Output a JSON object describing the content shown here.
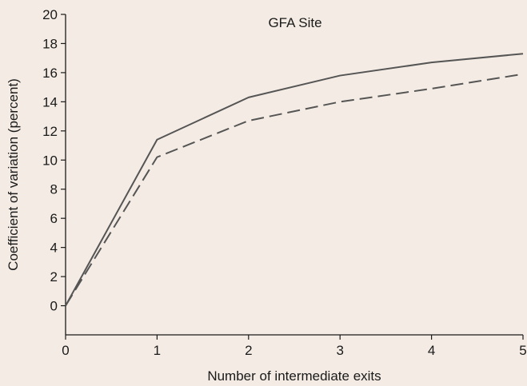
{
  "chart_data": {
    "type": "line",
    "title": "GFA Site",
    "xlabel": "Number of intermediate exits",
    "ylabel": "Coefficient of variation (percent)",
    "xlim": [
      0,
      5
    ],
    "ylim": [
      -2,
      20
    ],
    "x_ticks": [
      "0",
      "1",
      "2",
      "3",
      "4",
      "5"
    ],
    "y_ticks": [
      "0",
      "2",
      "4",
      "6",
      "8",
      "10",
      "12",
      "14",
      "16",
      "18",
      "20"
    ],
    "grid": false,
    "series": [
      {
        "style": "solid",
        "color": "#555555",
        "x": [
          0,
          1,
          2,
          3,
          4,
          5
        ],
        "values": [
          0,
          11.4,
          14.3,
          15.8,
          16.7,
          17.3
        ]
      },
      {
        "style": "dashed",
        "color": "#555555",
        "x": [
          0,
          1,
          2,
          3,
          4,
          5
        ],
        "values": [
          0,
          10.2,
          12.7,
          14.0,
          14.9,
          15.9
        ]
      }
    ]
  }
}
